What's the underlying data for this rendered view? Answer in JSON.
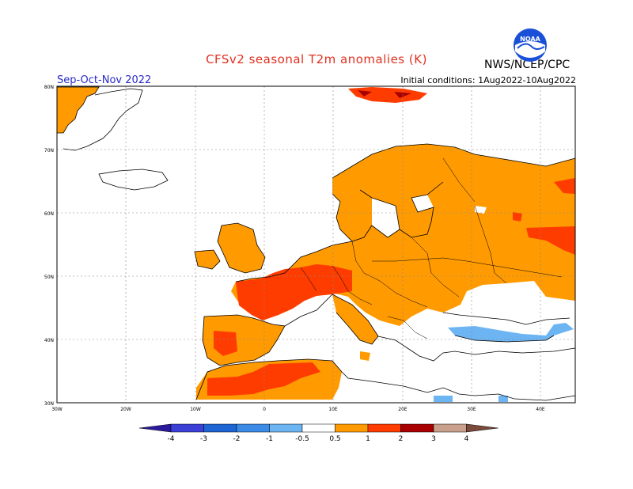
{
  "header": {
    "title": "CFSv2 seasonal T2m anomalies (K)",
    "season": "Sep-Oct-Nov 2022",
    "initial_conditions": "Initial conditions: 1Aug2022-10Aug2022",
    "org": "NWS/NCEP/CPC",
    "logo_text": "NOAA"
  },
  "map": {
    "lat_labels": [
      "80N",
      "70N",
      "60N",
      "50N",
      "40N",
      "30N"
    ],
    "lon_labels": [
      "30W",
      "20W",
      "10W",
      "0",
      "10E",
      "20E",
      "30E",
      "40E"
    ],
    "lat_range": [
      30,
      80
    ],
    "lon_range": [
      -30,
      45
    ],
    "grid": true
  },
  "colorbar": {
    "labels": [
      "-4",
      "-3",
      "-2",
      "-1",
      "-0.5",
      "0.5",
      "1",
      "2",
      "3",
      "4"
    ],
    "colors": [
      "#2a1a9e",
      "#3b3fd6",
      "#1e64d2",
      "#3a8ae6",
      "#6cb4f2",
      "#ffffff",
      "#ff9a00",
      "#ff3c00",
      "#a80000",
      "#c9a08c",
      "#7a4a3a"
    ]
  },
  "anomaly_colors": {
    "0.5-1": "#ff9a00",
    "1-2": "#ff3c00",
    "2-3": "#a80000",
    "-1--0.5": "#6cb4f2",
    "land_outline": "#000000"
  }
}
